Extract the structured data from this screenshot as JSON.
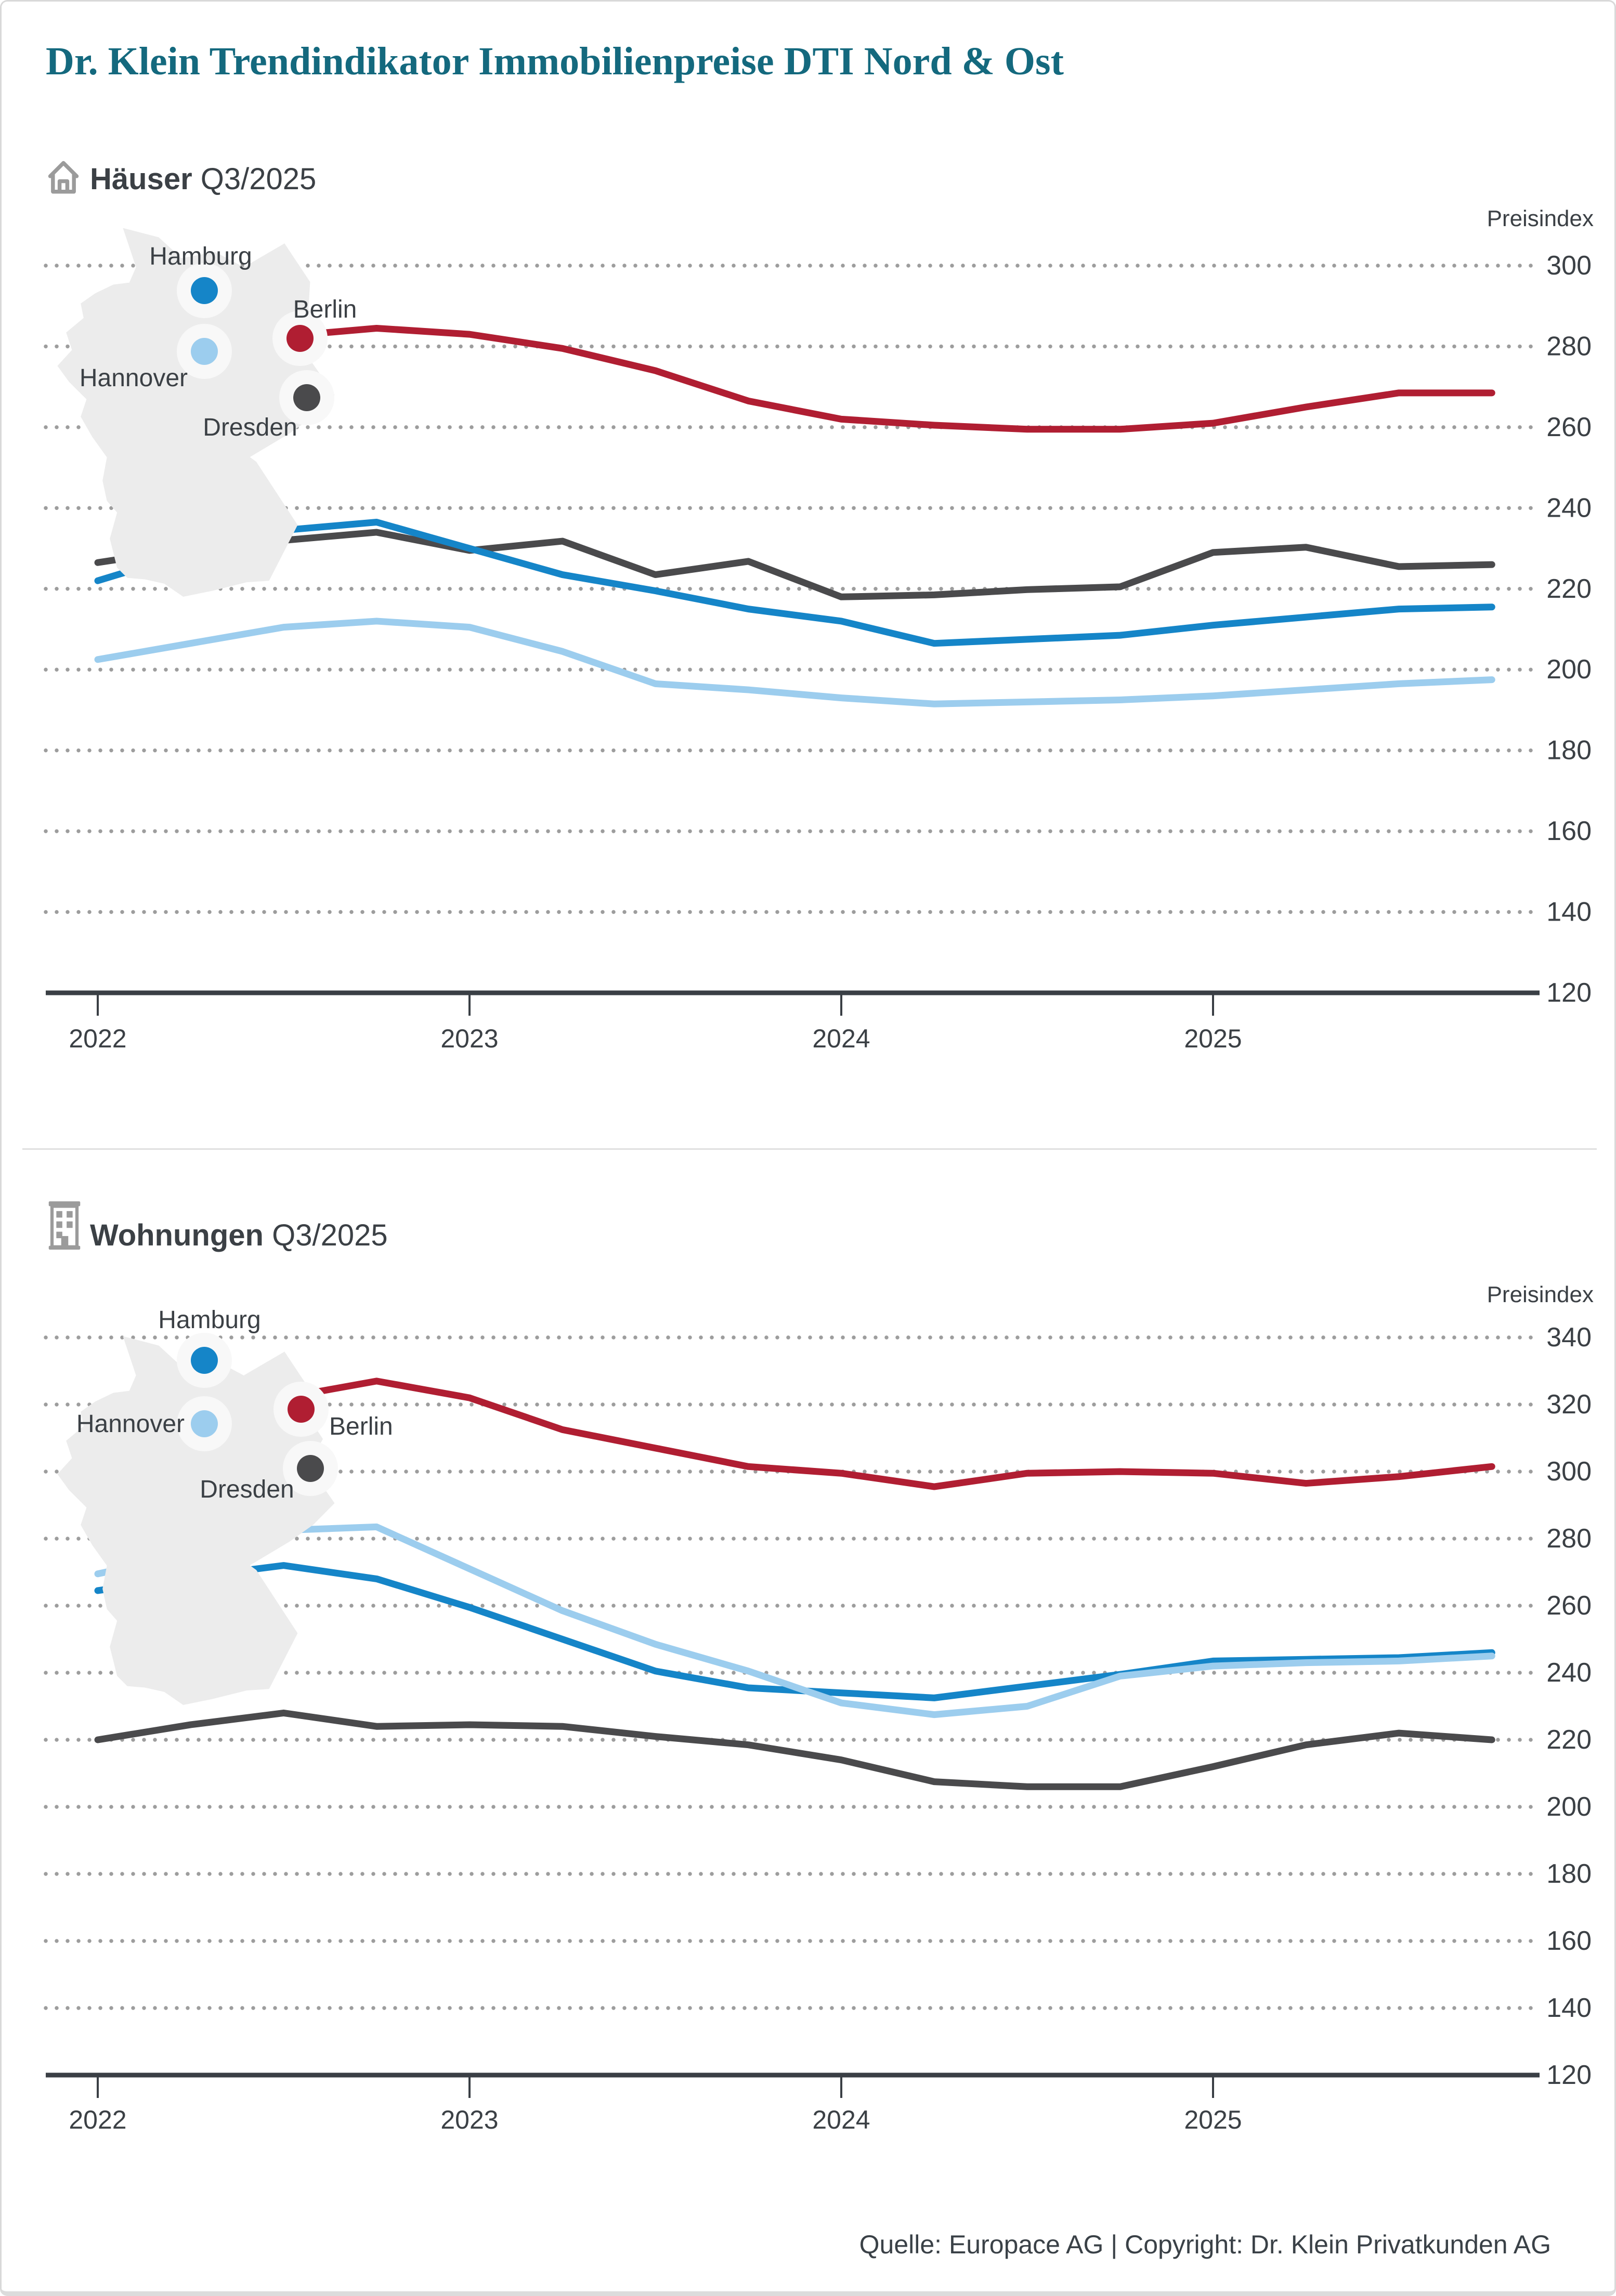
{
  "title": "Dr. Klein Trendindikator Immobilienpreise DTI Nord & Ost",
  "footer": "Quelle: Europace AG | Copyright: Dr. Klein Privatkunden AG",
  "colors": {
    "title_teal": "#14697e",
    "hamburg_blue": "#1585c8",
    "hannover_lightblue": "#9ccdee",
    "berlin_red": "#b01e32",
    "dresden_gray": "#4a4a4c",
    "map_fill": "#ececec",
    "halo_fill": "#f8f8f8",
    "grid_dot": "#9d9d9d",
    "axis_dark": "#3a3f45",
    "label_dark": "#3b4045"
  },
  "sections": [
    {
      "icon": "house-icon",
      "title": "Häuser",
      "period": "Q3/2025"
    },
    {
      "icon": "building-icon",
      "title": "Wohnungen",
      "period": "Q3/2025"
    }
  ],
  "chart_data": [
    {
      "id": "haeuser",
      "type": "line",
      "title": "Häuser Q3/2025",
      "y_axis_label": "Preisindex",
      "ylim": [
        120,
        300
      ],
      "grid_step": 20,
      "grid_on": true,
      "y_tick_labels": [
        "300",
        "280",
        "260",
        "240",
        "220",
        "200",
        "180",
        "160",
        "140",
        "120"
      ],
      "x_tick_labels": [
        "2022",
        "2023",
        "2024",
        "2025"
      ],
      "x": [
        "2021-Q4",
        "2022-Q1",
        "2022-Q2",
        "2022-Q3",
        "2022-Q4",
        "2023-Q1",
        "2023-Q2",
        "2023-Q3",
        "2023-Q4",
        "2024-Q1",
        "2024-Q2",
        "2024-Q3",
        "2024-Q4",
        "2025-Q1",
        "2025-Q2",
        "2025-Q3"
      ],
      "series": [
        {
          "name": "Berlin",
          "color": "#b01e32",
          "values": [
            null,
            null,
            282.5,
            284.5,
            283,
            279.5,
            274,
            266.5,
            262,
            260.5,
            259.5,
            259.5,
            261,
            265,
            268.5,
            268.5
          ]
        },
        {
          "name": "Dresden",
          "color": "#4a4a4c",
          "values": [
            226.5,
            230,
            232,
            234,
            229.5,
            231.8,
            223.5,
            226.8,
            218,
            218.5,
            219.8,
            220.5,
            229,
            230.3,
            225.5,
            226
          ]
        },
        {
          "name": "Hamburg",
          "color": "#1585c8",
          "values": [
            222,
            229,
            234.5,
            236.5,
            230,
            223.5,
            219.5,
            215,
            212,
            206.5,
            207.5,
            208.5,
            211,
            213,
            215,
            215.5
          ]
        },
        {
          "name": "Hannover",
          "color": "#9ccdee",
          "values": [
            202.5,
            206.5,
            210.5,
            212,
            210.5,
            204.5,
            196.5,
            195,
            193,
            191.5,
            192,
            192.5,
            193.5,
            195,
            196.5,
            197.5
          ]
        }
      ]
    },
    {
      "id": "wohnungen",
      "type": "line",
      "title": "Wohnungen Q3/2025",
      "y_axis_label": "Preisindex",
      "ylim": [
        120,
        340
      ],
      "grid_step": 20,
      "grid_on": true,
      "y_tick_labels": [
        "340",
        "320",
        "300",
        "280",
        "260",
        "240",
        "220",
        "200",
        "180",
        "160",
        "140",
        "120"
      ],
      "x_tick_labels": [
        "2022",
        "2023",
        "2024",
        "2025"
      ],
      "x": [
        "2021-Q4",
        "2022-Q1",
        "2022-Q2",
        "2022-Q3",
        "2022-Q4",
        "2023-Q1",
        "2023-Q2",
        "2023-Q3",
        "2023-Q4",
        "2024-Q1",
        "2024-Q2",
        "2024-Q3",
        "2024-Q4",
        "2025-Q1",
        "2025-Q2",
        "2025-Q3"
      ],
      "series": [
        {
          "name": "Berlin",
          "color": "#b01e32",
          "values": [
            null,
            null,
            322,
            327,
            322,
            312.5,
            307,
            301.5,
            299.5,
            295.5,
            299.5,
            300,
            299.5,
            296.5,
            298.5,
            301.5
          ]
        },
        {
          "name": "Dresden",
          "color": "#4a4a4c",
          "values": [
            220,
            224.5,
            228,
            224,
            224.5,
            224,
            221,
            218.5,
            214,
            207.5,
            206,
            206,
            212,
            218.5,
            222,
            220
          ]
        },
        {
          "name": "Hamburg",
          "color": "#1585c8",
          "values": [
            264.5,
            268.5,
            272,
            268,
            259.5,
            250,
            240.5,
            235.5,
            234,
            232.5,
            236,
            239.5,
            243.5,
            244,
            244.5,
            246
          ]
        },
        {
          "name": "Hannover",
          "color": "#9ccdee",
          "values": [
            269.5,
            275.5,
            282.5,
            283.5,
            271,
            258.5,
            248.5,
            240.5,
            231,
            227.5,
            230,
            239,
            242,
            243,
            243.5,
            245
          ]
        }
      ]
    }
  ],
  "map_cities": [
    "Hamburg",
    "Hannover",
    "Berlin",
    "Dresden"
  ]
}
